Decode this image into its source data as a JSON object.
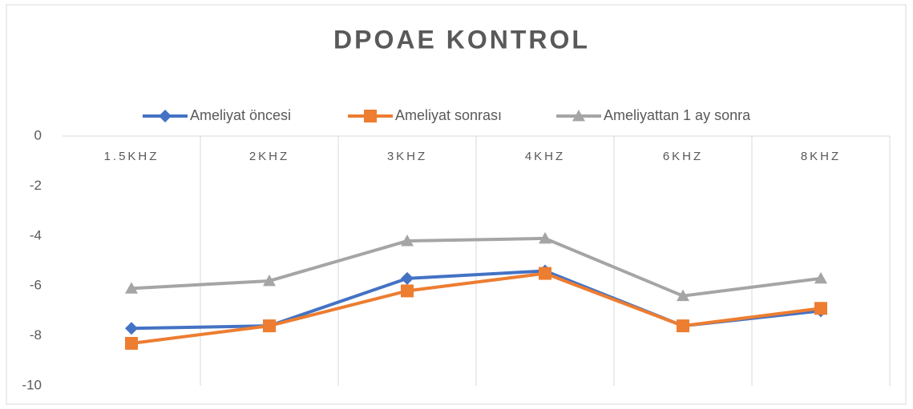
{
  "chart_data": {
    "type": "line",
    "title": "DPOAE KONTROL",
    "categories": [
      "1.5KHZ",
      "2KHZ",
      "3KHZ",
      "4KHZ",
      "6KHZ",
      "8KHZ"
    ],
    "series": [
      {
        "name": "Ameliyat öncesi",
        "color": "#4472c4",
        "marker": "diamond",
        "values": [
          -7.7,
          -7.6,
          -5.7,
          -5.4,
          -7.6,
          -7.0
        ]
      },
      {
        "name": "Ameliyat sonrası",
        "color": "#ed7d31",
        "marker": "square",
        "values": [
          -8.3,
          -7.6,
          -6.2,
          -5.5,
          -7.6,
          -6.9
        ]
      },
      {
        "name": "Ameliyattan 1 ay sonra",
        "color": "#a5a5a5",
        "marker": "triangle",
        "values": [
          -6.1,
          -5.8,
          -4.2,
          -4.1,
          -6.4,
          -5.7
        ]
      }
    ],
    "ylim": [
      -10,
      0
    ],
    "yticks": [
      0,
      -2,
      -4,
      -6,
      -8,
      -10
    ],
    "legend": "top"
  }
}
